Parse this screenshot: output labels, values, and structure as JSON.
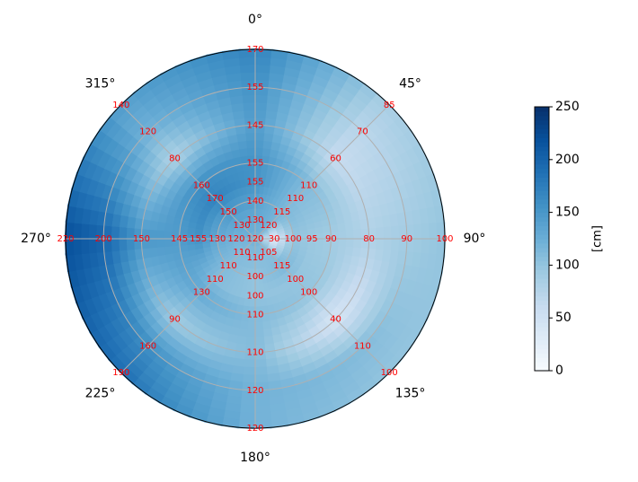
{
  "chart_data": {
    "type": "polar-heatmap",
    "theta": [
      0,
      45,
      90,
      135,
      180,
      225,
      270,
      315
    ],
    "theta_labels": [
      "0°",
      "45°",
      "90°",
      "135°",
      "180°",
      "225°",
      "270°",
      "315°"
    ],
    "radii": [
      0.5,
      1,
      1.5,
      2,
      3,
      4,
      5
    ],
    "rlim": [
      0,
      5
    ],
    "rticks": [
      1,
      2,
      3,
      4,
      5
    ],
    "center_value": 120,
    "series": [
      {
        "values": [
          130,
          140,
          155,
          155,
          145,
          155,
          170
        ]
      },
      {
        "values": [
          120,
          115,
          110,
          110,
          60,
          70,
          85
        ]
      },
      {
        "values": [
          30,
          100,
          95,
          90,
          80,
          90,
          100
        ]
      },
      {
        "values": [
          105,
          115,
          100,
          100,
          40,
          110,
          100
        ]
      },
      {
        "values": [
          110,
          100,
          100,
          110,
          110,
          120,
          120
        ]
      },
      {
        "values": [
          110,
          110,
          110,
          130,
          90,
          160,
          190
        ]
      },
      {
        "values": [
          120,
          130,
          155,
          145,
          150,
          200,
          220
        ]
      },
      {
        "values": [
          130,
          150,
          170,
          160,
          80,
          120,
          140
        ]
      }
    ],
    "label_color": "#ff0000",
    "colormap": "Blues",
    "clim": [
      0,
      250
    ],
    "colorbar_ticks": [
      0,
      50,
      100,
      150,
      200,
      250
    ],
    "colorbar_label": "[cm]",
    "grid": true
  }
}
